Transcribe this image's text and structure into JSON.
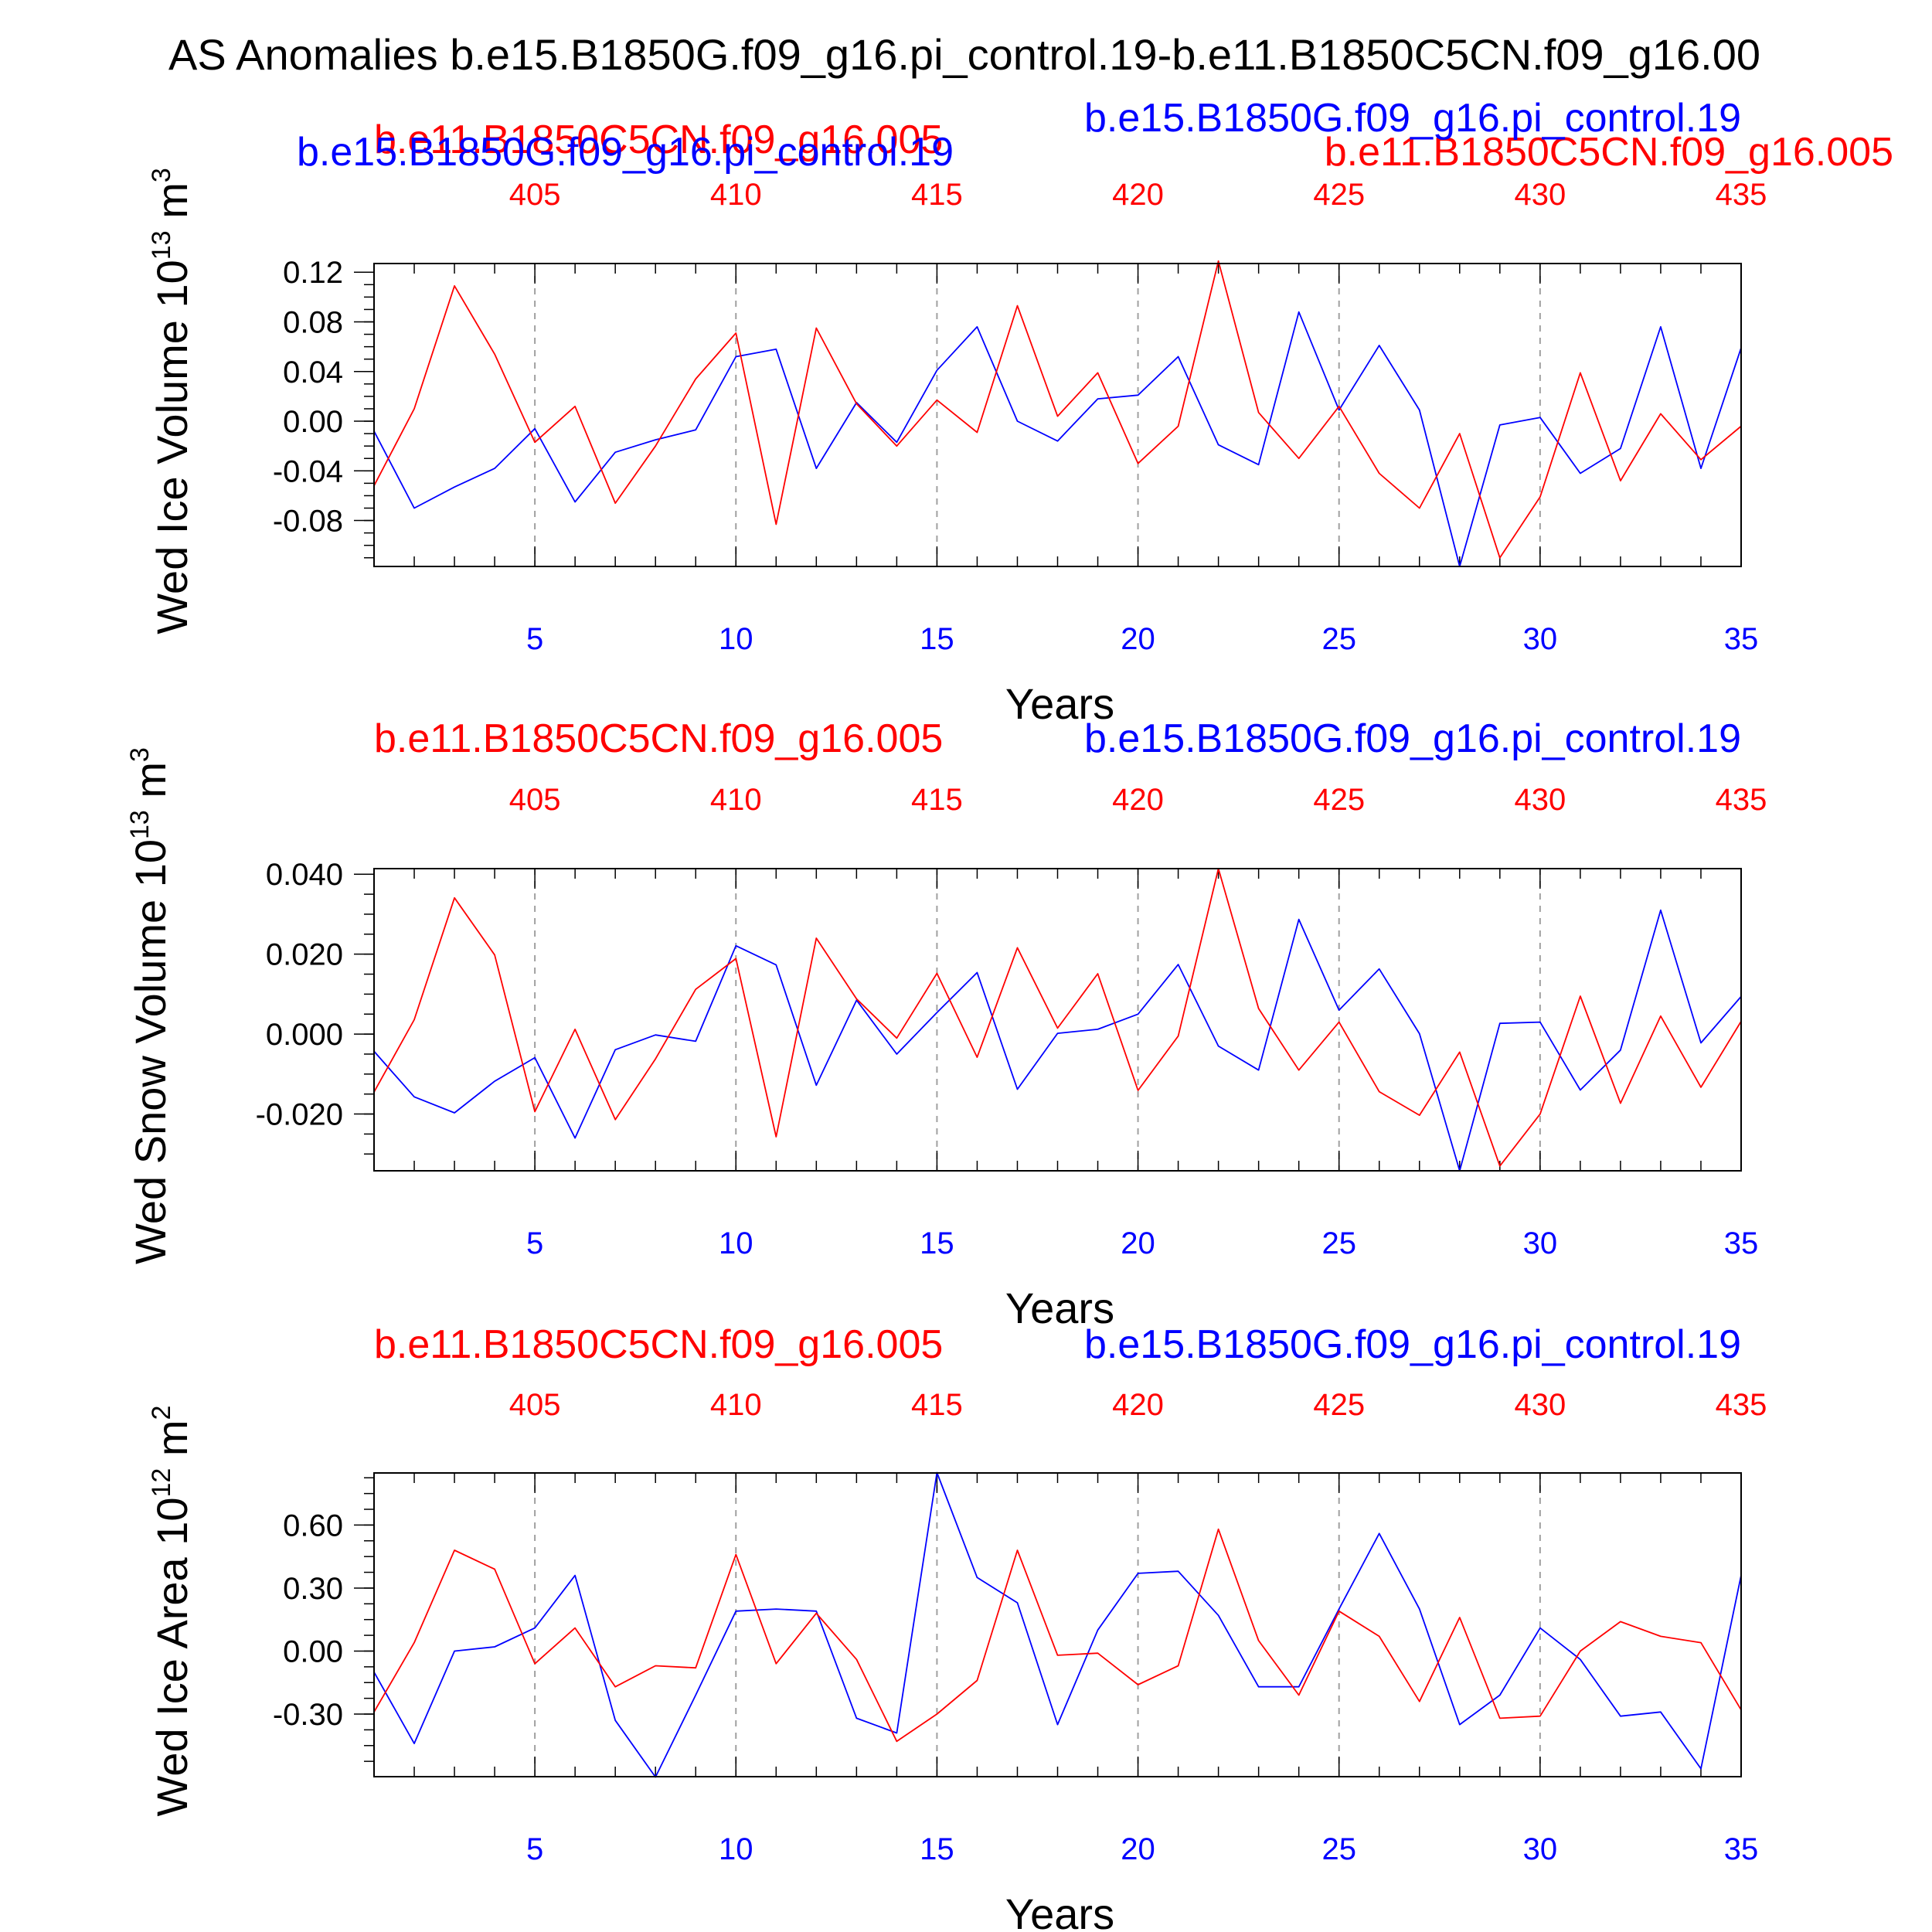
{
  "title": "AS Anomalies b.e15.B1850G.f09_g16.pi_control.19-b.e11.B1850C5CN.f09_g16.00",
  "colors": {
    "blue": "#0000ff",
    "red": "#ff0000",
    "axis": "#000000",
    "grid": "#a0a0a0"
  },
  "extra_title_red": "b.e11.B1850C5CN.f09_g16.005",
  "chart_data": [
    {
      "type": "line",
      "ylabel": "Wed Ice Volume 10",
      "ylabel_sup": "13",
      "ylabel_unit": "m",
      "ylabel_unit_sup": "3",
      "xlabel": "Years",
      "xlim": [
        1,
        35
      ],
      "ylim": [
        -0.117,
        0.127
      ],
      "yticks": [
        0.12,
        0.08,
        0.04,
        0.0,
        -0.04,
        -0.08
      ],
      "ytick_labels": [
        "0.12",
        "0.08",
        "0.04",
        "0.00",
        "-0.04",
        "-0.08"
      ],
      "bottom_ticks": [
        5,
        10,
        15,
        20,
        25,
        30,
        35
      ],
      "bottom_tick_labels": [
        "5",
        "10",
        "15",
        "20",
        "25",
        "30",
        "35"
      ],
      "top_tick_labels": [
        "405",
        "410",
        "415",
        "420",
        "425",
        "430",
        "435"
      ],
      "grid": "vertical dashed",
      "series": [
        {
          "name": "b.e15.B1850G.f09_g16.pi_control.19",
          "color": "blue",
          "x": [
            1,
            2,
            3,
            4,
            5,
            6,
            7,
            8,
            9,
            10,
            11,
            12,
            13,
            14,
            15,
            16,
            17,
            18,
            19,
            20,
            21,
            22,
            23,
            24,
            25,
            26,
            27,
            28,
            29,
            30,
            31,
            32,
            33,
            34,
            35
          ],
          "values": [
            -0.008,
            -0.07,
            -0.053,
            -0.038,
            -0.006,
            -0.065,
            -0.025,
            -0.015,
            -0.007,
            0.052,
            0.058,
            -0.038,
            0.015,
            -0.017,
            0.041,
            0.076,
            0.0,
            -0.016,
            0.018,
            0.021,
            0.052,
            -0.019,
            -0.035,
            0.088,
            0.009,
            0.061,
            0.009,
            -0.117,
            -0.003,
            0.003,
            -0.042,
            -0.022,
            0.076,
            -0.038,
            0.059
          ]
        },
        {
          "name": "b.e11.B1850C5CN.f09_g16.005",
          "color": "red",
          "x": [
            1,
            2,
            3,
            4,
            5,
            6,
            7,
            8,
            9,
            10,
            11,
            12,
            13,
            14,
            15,
            16,
            17,
            18,
            19,
            20,
            21,
            22,
            23,
            24,
            25,
            26,
            27,
            28,
            29,
            30,
            31,
            32,
            33,
            34,
            35
          ],
          "values": [
            -0.052,
            0.01,
            0.109,
            0.054,
            -0.017,
            0.012,
            -0.066,
            -0.02,
            0.034,
            0.071,
            -0.083,
            0.075,
            0.014,
            -0.02,
            0.017,
            -0.009,
            0.093,
            0.004,
            0.039,
            -0.034,
            -0.004,
            0.129,
            0.007,
            -0.03,
            0.012,
            -0.042,
            -0.07,
            -0.01,
            -0.11,
            -0.061,
            0.039,
            -0.048,
            0.006,
            -0.031,
            -0.004
          ]
        }
      ]
    },
    {
      "type": "line",
      "ylabel": "Wed Snow Volume 10",
      "ylabel_sup": "13",
      "ylabel_unit": "m",
      "ylabel_unit_sup": "3",
      "xlabel": "Years",
      "xlim": [
        1,
        35
      ],
      "ylim": [
        -0.0342,
        0.0414
      ],
      "yticks": [
        0.04,
        0.02,
        0.0,
        -0.02
      ],
      "ytick_labels": [
        "0.040",
        "0.020",
        "0.000",
        "-0.020"
      ],
      "bottom_ticks": [
        5,
        10,
        15,
        20,
        25,
        30,
        35
      ],
      "bottom_tick_labels": [
        "5",
        "10",
        "15",
        "20",
        "25",
        "30",
        "35"
      ],
      "top_tick_labels": [
        "405",
        "410",
        "415",
        "420",
        "425",
        "430",
        "435"
      ],
      "grid": "vertical dashed",
      "series": [
        {
          "name": "b.e15.B1850G.f09_g16.pi_control.19",
          "color": "blue",
          "x": [
            1,
            2,
            3,
            4,
            5,
            6,
            7,
            8,
            9,
            10,
            11,
            12,
            13,
            14,
            15,
            16,
            17,
            18,
            19,
            20,
            21,
            22,
            23,
            24,
            25,
            26,
            27,
            28,
            29,
            30,
            31,
            32,
            33,
            34,
            35
          ],
          "values": [
            -0.0043,
            -0.0157,
            -0.0197,
            -0.0118,
            -0.0059,
            -0.026,
            -0.0039,
            -0.0002,
            -0.0018,
            0.0221,
            0.0173,
            -0.0128,
            0.0085,
            -0.005,
            0.0054,
            0.0154,
            -0.0138,
            0.0002,
            0.0012,
            0.005,
            0.0174,
            -0.003,
            -0.009,
            0.0287,
            0.006,
            0.0163,
            0.0001,
            -0.0342,
            0.0027,
            0.003,
            -0.014,
            -0.004,
            0.031,
            -0.0022,
            0.0094
          ]
        },
        {
          "name": "b.e11.B1850C5CN.f09_g16.005",
          "color": "red",
          "x": [
            1,
            2,
            3,
            4,
            5,
            6,
            7,
            8,
            9,
            10,
            11,
            12,
            13,
            14,
            15,
            16,
            17,
            18,
            19,
            20,
            21,
            22,
            23,
            24,
            25,
            26,
            27,
            28,
            29,
            30,
            31,
            32,
            33,
            34,
            35
          ],
          "values": [
            -0.0145,
            0.0036,
            0.0341,
            0.0198,
            -0.0194,
            0.0012,
            -0.0214,
            -0.0062,
            0.0112,
            0.0189,
            -0.0257,
            0.024,
            0.0088,
            -0.001,
            0.0152,
            -0.0058,
            0.0216,
            0.0015,
            0.0151,
            -0.0141,
            -0.0005,
            0.0414,
            0.0064,
            -0.009,
            0.003,
            -0.0144,
            -0.0203,
            -0.0045,
            -0.033,
            -0.02,
            0.0095,
            -0.0173,
            0.0045,
            -0.0133,
            0.0032
          ]
        }
      ]
    },
    {
      "type": "line",
      "ylabel": "Wed Ice Area 10",
      "ylabel_sup": "12",
      "ylabel_unit": "m",
      "ylabel_unit_sup": "2",
      "xlabel": "Years",
      "xlim": [
        1,
        35
      ],
      "ylim": [
        -0.598,
        0.848
      ],
      "yticks": [
        0.6,
        0.3,
        0.0,
        -0.3
      ],
      "ytick_labels": [
        "0.60",
        "0.30",
        "0.00",
        "-0.30"
      ],
      "bottom_ticks": [
        5,
        10,
        15,
        20,
        25,
        30,
        35
      ],
      "bottom_tick_labels": [
        "5",
        "10",
        "15",
        "20",
        "25",
        "30",
        "35"
      ],
      "top_tick_labels": [
        "405",
        "410",
        "415",
        "420",
        "425",
        "430",
        "435"
      ],
      "grid": "vertical dashed",
      "series": [
        {
          "name": "b.e15.B1850G.f09_g16.pi_control.19",
          "color": "blue",
          "x": [
            1,
            2,
            3,
            4,
            5,
            6,
            7,
            8,
            9,
            10,
            11,
            12,
            13,
            14,
            15,
            16,
            17,
            18,
            19,
            20,
            21,
            22,
            23,
            24,
            25,
            26,
            27,
            28,
            29,
            30,
            31,
            32,
            33,
            34,
            35
          ],
          "values": [
            -0.1,
            -0.44,
            0.0,
            0.02,
            0.11,
            0.36,
            -0.33,
            -0.6,
            -0.21,
            0.19,
            0.2,
            0.19,
            -0.32,
            -0.39,
            0.85,
            0.35,
            0.23,
            -0.35,
            0.1,
            0.37,
            0.38,
            0.17,
            -0.17,
            -0.17,
            0.2,
            0.56,
            0.2,
            -0.35,
            -0.21,
            0.11,
            -0.04,
            -0.31,
            -0.29,
            -0.56,
            0.36
          ]
        },
        {
          "name": "b.e11.B1850C5CN.f09_g16.005",
          "color": "red",
          "x": [
            1,
            2,
            3,
            4,
            5,
            6,
            7,
            8,
            9,
            10,
            11,
            12,
            13,
            14,
            15,
            16,
            17,
            18,
            19,
            20,
            21,
            22,
            23,
            24,
            25,
            26,
            27,
            28,
            29,
            30,
            31,
            32,
            33,
            34,
            35
          ],
          "values": [
            -0.29,
            0.04,
            0.48,
            0.39,
            -0.06,
            0.11,
            -0.17,
            -0.07,
            -0.08,
            0.46,
            -0.06,
            0.18,
            -0.04,
            -0.43,
            -0.3,
            -0.14,
            0.48,
            -0.02,
            -0.01,
            -0.16,
            -0.07,
            0.58,
            0.05,
            -0.21,
            0.19,
            0.07,
            -0.24,
            0.16,
            -0.32,
            -0.31,
            0.0,
            0.14,
            0.07,
            0.04,
            -0.28
          ]
        }
      ]
    }
  ]
}
